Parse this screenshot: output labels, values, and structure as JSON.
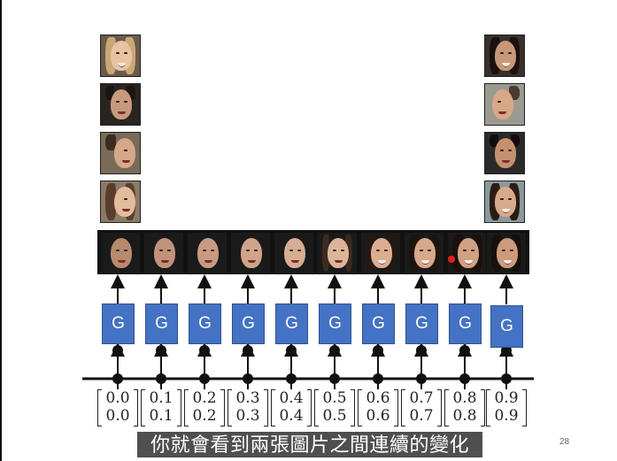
{
  "slide": {
    "page_number": "28",
    "subtitle": "你就會看到兩張圖片之間連續的變化"
  },
  "generator_label": "G",
  "generators": [
    "G",
    "G",
    "G",
    "G",
    "G",
    "G",
    "G",
    "G",
    "G",
    "G"
  ],
  "vectors": [
    {
      "top": "0.0",
      "bottom": "0.0"
    },
    {
      "top": "0.1",
      "bottom": "0.1"
    },
    {
      "top": "0.2",
      "bottom": "0.2"
    },
    {
      "top": "0.3",
      "bottom": "0.3"
    },
    {
      "top": "0.4",
      "bottom": "0.4"
    },
    {
      "top": "0.5",
      "bottom": "0.5"
    },
    {
      "top": "0.6",
      "bottom": "0.6"
    },
    {
      "top": "0.7",
      "bottom": "0.7"
    },
    {
      "top": "0.8",
      "bottom": "0.8"
    },
    {
      "top": "0.9",
      "bottom": "0.9"
    }
  ],
  "left_column_faces": [
    "woman-blonde-smiling",
    "man-dark-hair",
    "man-profile",
    "woman-profile"
  ],
  "right_column_faces": [
    "woman-dark-hair-smiling",
    "man-turned-right",
    "man-dark-hair-front",
    "woman-dark-hair"
  ],
  "interpolation_faces": [
    "man-bald",
    "man-short-hair",
    "man-short-hair",
    "man-light",
    "person-light",
    "woman-light",
    "woman-dark-hair",
    "woman-dark-hair-smiling",
    "woman-dark-hair-smiling",
    "woman-dark-hair-smiling"
  ],
  "colors": {
    "generator_fill": "#4472c4",
    "subtitle_background": "#404040",
    "cursor": "#e02020"
  }
}
